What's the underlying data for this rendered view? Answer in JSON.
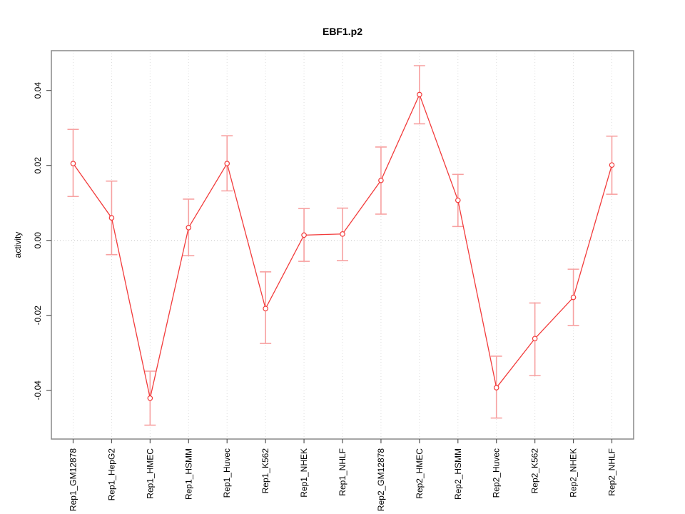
{
  "chart_data": {
    "type": "line",
    "title": "EBF1.p2",
    "xlabel": "",
    "ylabel": "activity",
    "categories": [
      "Rep1_GM12878",
      "Rep1_HepG2",
      "Rep1_HMEC",
      "Rep1_HSMM",
      "Rep1_Huvec",
      "Rep1_K562",
      "Rep1_NHEK",
      "Rep1_NHLF",
      "Rep2_GM12878",
      "Rep2_HMEC",
      "Rep2_HSMM",
      "Rep2_Huvec",
      "Rep2_K562",
      "Rep2_NHEK",
      "Rep2_NHLF"
    ],
    "series": [
      {
        "name": "activity",
        "values": [
          0.0205,
          0.006,
          -0.0421,
          0.0034,
          0.0205,
          -0.0182,
          0.0014,
          0.0017,
          0.016,
          0.0389,
          0.0107,
          -0.0393,
          -0.0262,
          -0.0152,
          0.0201
        ],
        "err_lo": [
          0.0117,
          -0.0038,
          -0.0493,
          -0.0041,
          0.0132,
          -0.0275,
          -0.0056,
          -0.0054,
          0.007,
          0.0311,
          0.0037,
          -0.0474,
          -0.0361,
          -0.0227,
          0.0123
        ],
        "err_hi": [
          0.0296,
          0.0158,
          -0.0349,
          0.011,
          0.0279,
          -0.0084,
          0.0085,
          0.0086,
          0.0249,
          0.0466,
          0.0176,
          -0.0309,
          -0.0167,
          -0.0077,
          0.0278
        ]
      }
    ],
    "ylim": [
      -0.053,
      0.0506
    ],
    "yticks": [
      -0.04,
      -0.02,
      0.0,
      0.02,
      0.04
    ],
    "ytick_labels": [
      "-0.04",
      "-0.02",
      "0.00",
      "0.02",
      "0.04"
    ],
    "grid": "dotted vertical line at each category; dotted horizontal line at y=0",
    "legend": "none",
    "point_style": "open-circle",
    "colors": {
      "line": "#f23b3b",
      "errorbar": "#f7a1a1",
      "grid": "#dcdcdc",
      "zero_line": "#c8c8c8",
      "box": "#888888",
      "tick": "#555555",
      "text": "#000000",
      "background": "#ffffff"
    }
  }
}
